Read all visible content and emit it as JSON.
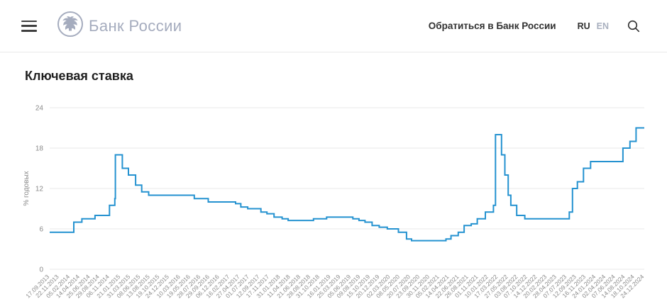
{
  "header": {
    "brand": "Банк России",
    "brand_color": "#a5acbe",
    "contact_link": "Обратиться в Банк России",
    "lang_ru": "RU",
    "lang_en": "EN"
  },
  "page": {
    "title": "Ключевая ставка"
  },
  "chart_data": {
    "type": "line",
    "line_style": "step-after",
    "title": "Ключевая ставка",
    "ylabel": "% годовых",
    "ylim": [
      0,
      24
    ],
    "y_ticks": [
      0,
      6,
      12,
      18,
      24
    ],
    "grid": true,
    "legend": "none",
    "line_color": "#2492d0",
    "grid_color": "#e8e8e8",
    "tick_color": "#8a8a8a",
    "series_name": "Ключевая ставка, % годовых",
    "points": [
      {
        "date": "17.09.2013",
        "value": 5.5
      },
      {
        "date": "03.03.2014",
        "value": 7.0
      },
      {
        "date": "28.04.2014",
        "value": 7.5
      },
      {
        "date": "28.07.2014",
        "value": 8.0
      },
      {
        "date": "05.11.2014",
        "value": 9.5
      },
      {
        "date": "12.12.2014",
        "value": 10.5
      },
      {
        "date": "16.12.2014",
        "value": 17.0
      },
      {
        "date": "02.02.2015",
        "value": 15.0
      },
      {
        "date": "16.03.2015",
        "value": 14.0
      },
      {
        "date": "05.05.2015",
        "value": 12.5
      },
      {
        "date": "16.06.2015",
        "value": 11.5
      },
      {
        "date": "03.08.2015",
        "value": 11.0
      },
      {
        "date": "14.06.2016",
        "value": 10.5
      },
      {
        "date": "19.09.2016",
        "value": 10.0
      },
      {
        "date": "27.03.2017",
        "value": 9.75
      },
      {
        "date": "02.05.2017",
        "value": 9.25
      },
      {
        "date": "19.06.2017",
        "value": 9.0
      },
      {
        "date": "18.09.2017",
        "value": 8.5
      },
      {
        "date": "30.10.2017",
        "value": 8.25
      },
      {
        "date": "18.12.2017",
        "value": 7.75
      },
      {
        "date": "12.02.2018",
        "value": 7.5
      },
      {
        "date": "26.03.2018",
        "value": 7.25
      },
      {
        "date": "17.09.2018",
        "value": 7.5
      },
      {
        "date": "17.12.2018",
        "value": 7.75
      },
      {
        "date": "17.06.2019",
        "value": 7.5
      },
      {
        "date": "29.07.2019",
        "value": 7.25
      },
      {
        "date": "09.09.2019",
        "value": 7.0
      },
      {
        "date": "28.10.2019",
        "value": 6.5
      },
      {
        "date": "16.12.2019",
        "value": 6.25
      },
      {
        "date": "10.02.2020",
        "value": 6.0
      },
      {
        "date": "27.04.2020",
        "value": 5.5
      },
      {
        "date": "22.06.2020",
        "value": 4.5
      },
      {
        "date": "27.07.2020",
        "value": 4.25
      },
      {
        "date": "22.03.2021",
        "value": 4.5
      },
      {
        "date": "26.04.2021",
        "value": 5.0
      },
      {
        "date": "15.06.2021",
        "value": 5.5
      },
      {
        "date": "26.07.2021",
        "value": 6.5
      },
      {
        "date": "13.09.2021",
        "value": 6.75
      },
      {
        "date": "25.10.2021",
        "value": 7.5
      },
      {
        "date": "20.12.2021",
        "value": 8.5
      },
      {
        "date": "14.02.2022",
        "value": 9.5
      },
      {
        "date": "28.02.2022",
        "value": 20.0
      },
      {
        "date": "11.04.2022",
        "value": 17.0
      },
      {
        "date": "04.05.2022",
        "value": 14.0
      },
      {
        "date": "27.05.2022",
        "value": 11.0
      },
      {
        "date": "14.06.2022",
        "value": 9.5
      },
      {
        "date": "25.07.2022",
        "value": 8.0
      },
      {
        "date": "19.09.2022",
        "value": 7.5
      },
      {
        "date": "24.07.2023",
        "value": 8.5
      },
      {
        "date": "15.08.2023",
        "value": 12.0
      },
      {
        "date": "18.09.2023",
        "value": 13.0
      },
      {
        "date": "30.10.2023",
        "value": 15.0
      },
      {
        "date": "18.12.2023",
        "value": 16.0
      },
      {
        "date": "29.07.2024",
        "value": 18.0
      },
      {
        "date": "16.09.2024",
        "value": 19.0
      },
      {
        "date": "28.10.2024",
        "value": 21.0
      }
    ],
    "end_date": "24.12.2024",
    "x_tick_labels": [
      "17.09.2013",
      "22.11.2013",
      "05.02.2014",
      "14.04.2014",
      "25.06.2014",
      "29.08.2014",
      "06.11.2014",
      "21.01.2015",
      "31.03.2015",
      "08.06.2015",
      "13.08.2015",
      "19.10.2015",
      "24.12.2015",
      "10.03.2016",
      "19.05.2016",
      "28.07.2016",
      "29.09.2016",
      "06.12.2016",
      "16.02.2017",
      "27.04.2017",
      "01.07.2017",
      "12.09.2017",
      "17.11.2017",
      "31.01.2018",
      "11.04.2018",
      "21.06.2018",
      "28.08.2018",
      "31.10.2018",
      "16.01.2019",
      "25.03.2019",
      "05.06.2019",
      "09.08.2019",
      "15.10.2019",
      "20.12.2019",
      "02.03.2020",
      "08.05.2020",
      "20.07.2020",
      "23.09.2020",
      "30.11.2020",
      "05.02.2021",
      "14.04.2021",
      "22.06.2021",
      "26.08.2021",
      "01.11.2021",
      "10.01.2022",
      "17.03.2022",
      "27.05.2022",
      "03.08.2022",
      "07.10.2022",
      "14.12.2022",
      "20.02.2023",
      "28.04.2023",
      "07.07.2023",
      "12.09.2023",
      "16.11.2023",
      "24.01.2024",
      "02.04.2024",
      "07.06.2024",
      "14.08.2024",
      "18.10.2024",
      "24.12.2024"
    ]
  }
}
